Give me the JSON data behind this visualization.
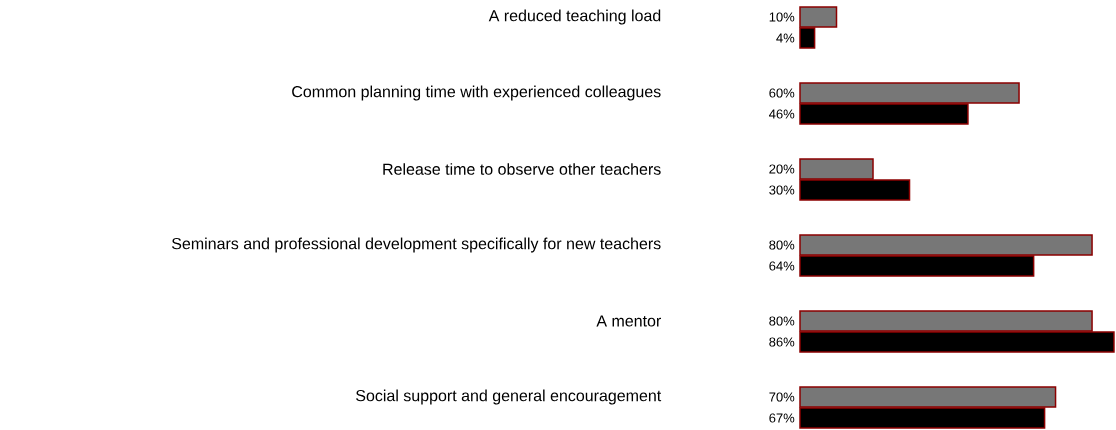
{
  "chart_data": {
    "type": "bar",
    "orientation": "horizontal",
    "categories": [
      "A reduced teaching load",
      "Common planning time with experienced colleagues",
      "Release time to observe other teachers",
      "Seminars and professional development specifically for new teachers",
      "A mentor",
      "Social support and general encouragement"
    ],
    "series": [
      {
        "color": "#777777",
        "values": [
          10,
          60,
          20,
          80,
          80,
          70
        ],
        "value_labels": [
          "10%",
          "60%",
          "20%",
          "80%",
          "80%",
          "70%"
        ]
      },
      {
        "color": "#000000",
        "values": [
          4,
          46,
          30,
          64,
          86,
          67
        ],
        "value_labels": [
          "4%",
          "46%",
          "30%",
          "64%",
          "86%",
          "67%"
        ]
      }
    ]
  }
}
